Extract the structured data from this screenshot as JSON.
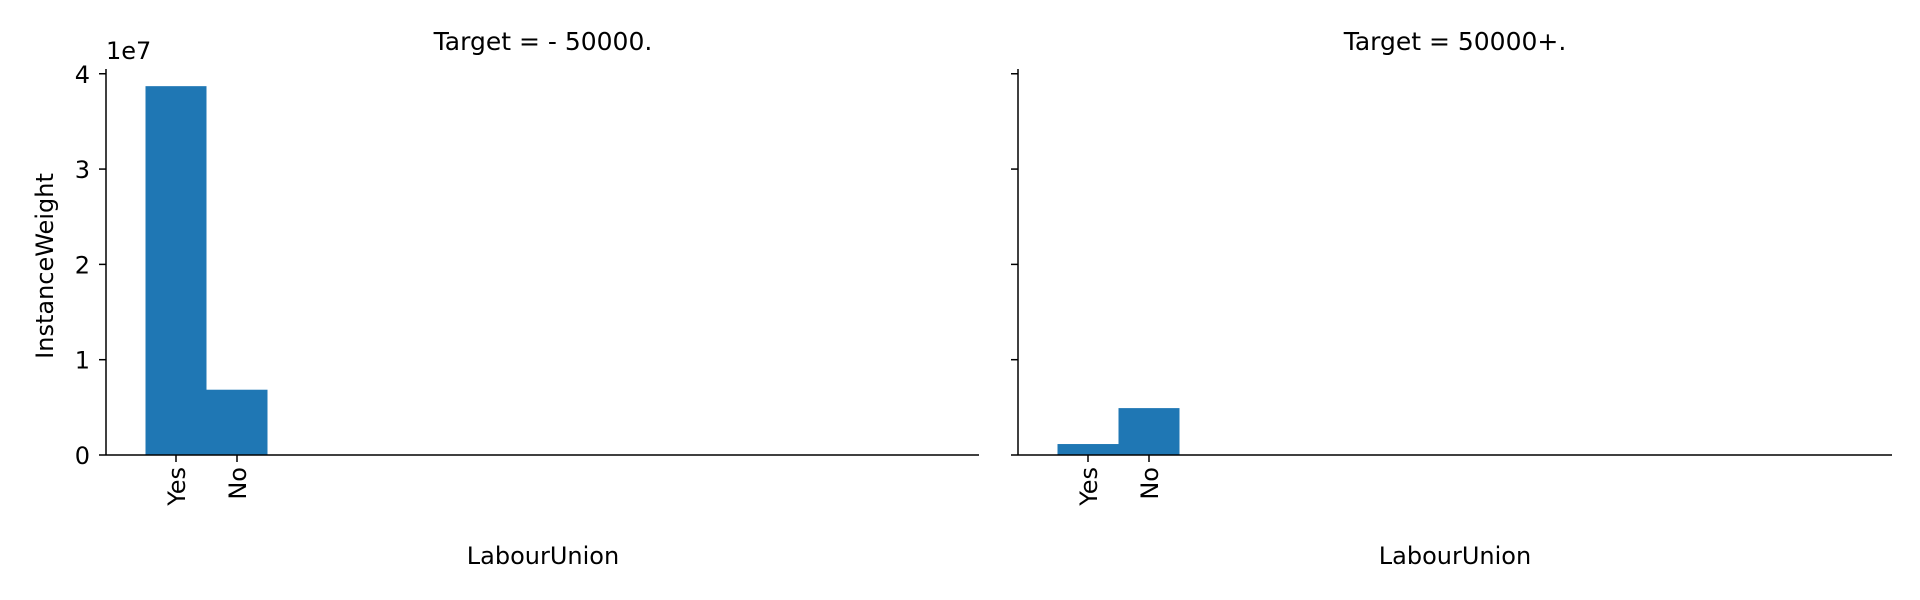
{
  "chart_data": {
    "type": "bar",
    "layout": "facet-grid",
    "y_offset_label": "1e7",
    "yticks": [
      0,
      1,
      2,
      3,
      4
    ],
    "ylim": [
      0,
      40500000.0
    ],
    "ylabel": "InstanceWeight",
    "sharey": true,
    "grid": false,
    "legend": "none",
    "bar_color": "#1f77b4",
    "panels": [
      {
        "title": "Target =  - 50000.",
        "xlabel": "LabourUnion",
        "categories": [
          "Yes",
          "No"
        ],
        "values": [
          38700000,
          6850000
        ]
      },
      {
        "title": "Target =  50000+.",
        "xlabel": "LabourUnion",
        "categories": [
          "Yes",
          "No"
        ],
        "values": [
          1150000,
          4920000
        ]
      }
    ]
  }
}
